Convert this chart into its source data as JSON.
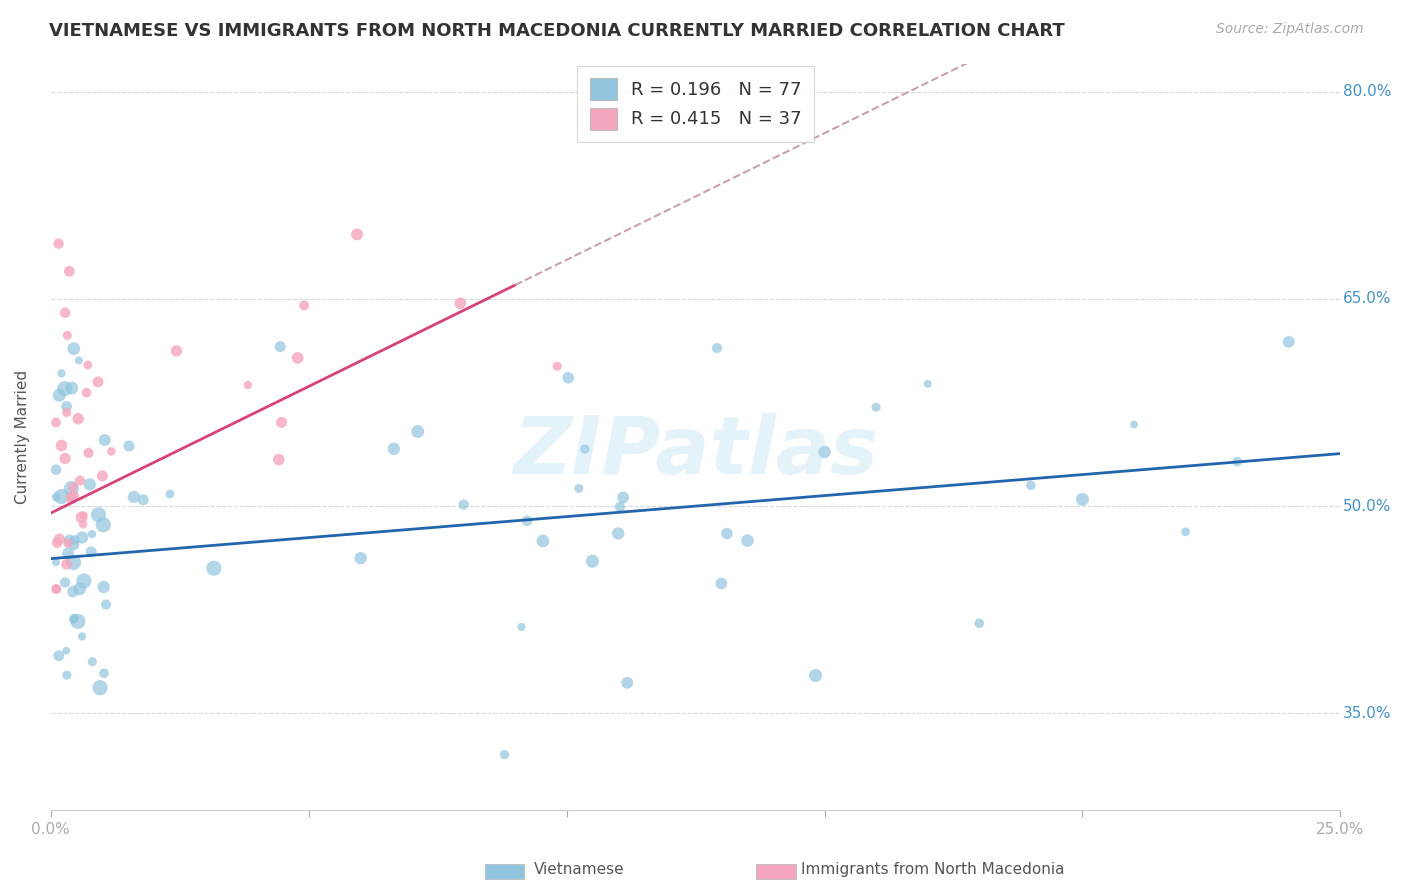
{
  "title": "VIETNAMESE VS IMMIGRANTS FROM NORTH MACEDONIA CURRENTLY MARRIED CORRELATION CHART",
  "source": "Source: ZipAtlas.com",
  "ylabel": "Currently Married",
  "xlim": [
    0.0,
    0.25
  ],
  "ylim": [
    0.28,
    0.82
  ],
  "ytick_vals": [
    0.35,
    0.5,
    0.65,
    0.8
  ],
  "ytick_labels": [
    "35.0%",
    "50.0%",
    "65.0%",
    "80.0%"
  ],
  "xtick_vals": [
    0.0,
    0.05,
    0.1,
    0.15,
    0.2,
    0.25
  ],
  "xtick_labels": [
    "0.0%",
    "",
    "",
    "",
    "",
    "25.0%"
  ],
  "watermark": "ZIPatlas",
  "R_vietnamese": 0.196,
  "N_vietnamese": 77,
  "R_macedonian": 0.415,
  "N_macedonian": 37,
  "blue_color": "#92c5de",
  "pink_color": "#f4a6bc",
  "trend_blue": "#2166ac",
  "trend_pink": "#d6427a",
  "trend_gray": "#c8a0b4",
  "legend_label_blue": "R = 0.196   N = 77",
  "legend_label_pink": "R = 0.415   N = 37",
  "bottom_label_blue": "Vietnamese",
  "bottom_label_pink": "Immigrants from North Macedonia"
}
